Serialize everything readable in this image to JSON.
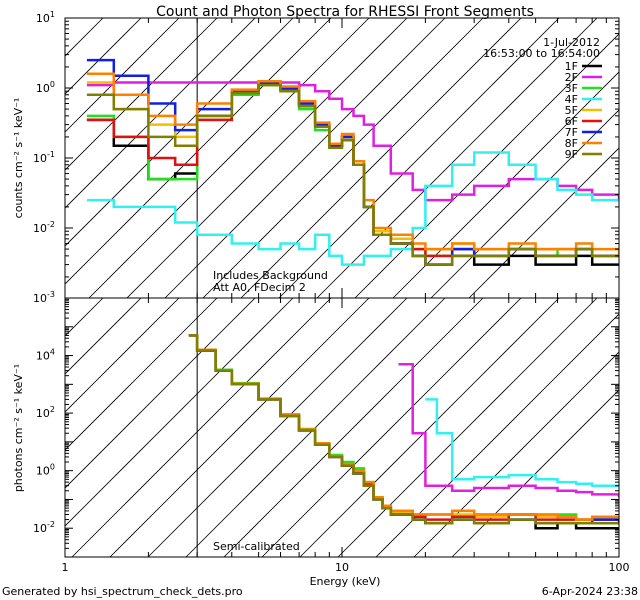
{
  "title": "Count and Photon Spectra for RHESSI Front Segments",
  "date": "1-Jul-2012",
  "time_range": "16:53:00 to 16:54:00",
  "footer_left": "Generated by hsi_spectrum_check_dets.pro",
  "footer_right": "6-Apr-2024 23:38",
  "chart_data": [
    {
      "type": "line",
      "panel": "top",
      "ylabel": "counts cm⁻² s⁻¹ keV⁻¹",
      "xlabel": "",
      "xscale": "log",
      "yscale": "log",
      "xlim": [
        1,
        100
      ],
      "ylim": [
        0.001,
        10
      ],
      "xticks": [
        {
          "value": 1,
          "label": "1"
        },
        {
          "value": 10,
          "label": "10"
        },
        {
          "value": 100,
          "label": "100"
        }
      ],
      "yticks": [
        {
          "value": 10,
          "base": "10",
          "exp": "1"
        },
        {
          "value": 1,
          "base": "10",
          "exp": "0"
        },
        {
          "value": 0.1,
          "base": "10",
          "exp": "-1"
        },
        {
          "value": 0.01,
          "base": "10",
          "exp": "-2"
        },
        {
          "value": 0.001,
          "base": "10",
          "exp": "-3"
        }
      ],
      "annotations": [
        "Includes Background",
        "Att A0, FDecim 2"
      ],
      "attenuated_below_keV": 3,
      "legend": [
        {
          "name": "1F",
          "color": "#000000"
        },
        {
          "name": "2F",
          "color": "#e020e0"
        },
        {
          "name": "3F",
          "color": "#20e020"
        },
        {
          "name": "4F",
          "color": "#30f0f0"
        },
        {
          "name": "5F",
          "color": "#f0c000"
        },
        {
          "name": "6F",
          "color": "#e01010"
        },
        {
          "name": "7F",
          "color": "#1020e0"
        },
        {
          "name": "8F",
          "color": "#ff8000"
        },
        {
          "name": "9F",
          "color": "#808000"
        }
      ],
      "series": [
        {
          "name": "1F",
          "color": "#000000",
          "x": [
            1.2,
            1.5,
            2,
            2.5,
            3,
            4,
            5,
            6,
            7,
            8,
            9,
            10,
            11,
            12,
            13,
            15,
            18,
            20,
            25,
            30,
            40,
            50,
            60,
            70,
            80,
            100
          ],
          "y": [
            0.35,
            0.15,
            0.05,
            0.06,
            0.4,
            0.9,
            1.2,
            1.0,
            0.6,
            0.3,
            0.15,
            0.2,
            0.08,
            0.02,
            0.008,
            0.006,
            0.004,
            0.003,
            0.004,
            0.003,
            0.004,
            0.003,
            0.003,
            0.004,
            0.003,
            0.003
          ]
        },
        {
          "name": "2F",
          "color": "#e020e0",
          "x": [
            1.2,
            1.5,
            2,
            3,
            4,
            5,
            6,
            7,
            8,
            9,
            10,
            11,
            12,
            13,
            15,
            18,
            20,
            25,
            30,
            40,
            50,
            60,
            70,
            80,
            100
          ],
          "y": [
            1.1,
            1.2,
            1.2,
            1.2,
            1.2,
            1.2,
            1.2,
            1.1,
            0.9,
            0.7,
            0.5,
            0.4,
            0.3,
            0.15,
            0.06,
            0.035,
            0.025,
            0.03,
            0.04,
            0.05,
            0.05,
            0.04,
            0.035,
            0.03,
            0.025
          ]
        },
        {
          "name": "3F",
          "color": "#20e020",
          "x": [
            1.2,
            1.5,
            2,
            2.5,
            3,
            4,
            5,
            6,
            7,
            8,
            9,
            10,
            11,
            12,
            13,
            15,
            18,
            20,
            25,
            30,
            40,
            50,
            60,
            70,
            80,
            100
          ],
          "y": [
            0.4,
            0.2,
            0.05,
            0.05,
            0.35,
            0.8,
            1.1,
            0.9,
            0.5,
            0.25,
            0.15,
            0.18,
            0.09,
            0.02,
            0.009,
            0.007,
            0.005,
            0.004,
            0.005,
            0.004,
            0.005,
            0.004,
            0.005,
            0.005,
            0.004,
            0.004
          ]
        },
        {
          "name": "4F",
          "color": "#30f0f0",
          "x": [
            1.2,
            1.5,
            2,
            2.5,
            3,
            4,
            5,
            6,
            7,
            8,
            9,
            10,
            11,
            12,
            13,
            15,
            18,
            20,
            25,
            30,
            40,
            50,
            60,
            70,
            80,
            100
          ],
          "y": [
            0.025,
            0.02,
            0.02,
            0.012,
            0.008,
            0.006,
            0.005,
            0.006,
            0.005,
            0.008,
            0.004,
            0.003,
            0.003,
            0.004,
            0.004,
            0.005,
            0.01,
            0.04,
            0.08,
            0.12,
            0.08,
            0.05,
            0.035,
            0.03,
            0.025,
            0.025
          ]
        },
        {
          "name": "5F",
          "color": "#f0c000",
          "x": [
            1.2,
            1.5,
            2,
            2.5,
            3,
            4,
            5,
            6,
            7,
            8,
            9,
            10,
            11,
            12,
            13,
            15,
            18,
            20,
            25,
            30,
            40,
            50,
            60,
            70,
            80,
            100
          ],
          "y": [
            1.2,
            0.5,
            0.3,
            0.2,
            0.5,
            0.9,
            1.2,
            1.0,
            0.6,
            0.3,
            0.15,
            0.2,
            0.08,
            0.02,
            0.009,
            0.007,
            0.005,
            0.005,
            0.006,
            0.005,
            0.005,
            0.005,
            0.005,
            0.005,
            0.004,
            0.005
          ]
        },
        {
          "name": "6F",
          "color": "#e01010",
          "x": [
            1.2,
            1.5,
            2,
            2.5,
            3,
            4,
            5,
            6,
            7,
            8,
            9,
            10,
            11,
            12,
            13,
            15,
            18,
            20,
            25,
            30,
            40,
            50,
            60,
            70,
            80,
            100
          ],
          "y": [
            0.35,
            0.2,
            0.1,
            0.08,
            0.35,
            0.85,
            1.15,
            0.95,
            0.55,
            0.28,
            0.15,
            0.18,
            0.08,
            0.02,
            0.008,
            0.006,
            0.005,
            0.004,
            0.005,
            0.004,
            0.005,
            0.004,
            0.004,
            0.005,
            0.004,
            0.004
          ]
        },
        {
          "name": "7F",
          "color": "#1020e0",
          "x": [
            1.2,
            1.5,
            2,
            2.5,
            3,
            4,
            5,
            6,
            7,
            8,
            9,
            10,
            11,
            12,
            13,
            15,
            18,
            20,
            25,
            30,
            40,
            50,
            60,
            70,
            80,
            100
          ],
          "y": [
            2.5,
            1.5,
            0.6,
            0.25,
            0.5,
            0.9,
            1.2,
            1.0,
            0.6,
            0.3,
            0.15,
            0.2,
            0.08,
            0.02,
            0.008,
            0.006,
            0.004,
            0.003,
            0.005,
            0.004,
            0.005,
            0.004,
            0.004,
            0.005,
            0.004,
            0.004
          ]
        },
        {
          "name": "8F",
          "color": "#ff8000",
          "x": [
            1.2,
            1.5,
            2,
            2.5,
            3,
            4,
            5,
            6,
            7,
            8,
            9,
            10,
            11,
            12,
            13,
            15,
            18,
            20,
            25,
            30,
            40,
            50,
            60,
            70,
            80,
            100
          ],
          "y": [
            1.6,
            0.8,
            0.4,
            0.3,
            0.6,
            0.95,
            1.25,
            1.05,
            0.65,
            0.32,
            0.16,
            0.22,
            0.09,
            0.025,
            0.01,
            0.008,
            0.006,
            0.005,
            0.006,
            0.005,
            0.006,
            0.005,
            0.005,
            0.006,
            0.005,
            0.005
          ]
        },
        {
          "name": "9F",
          "color": "#808000",
          "x": [
            1.2,
            1.5,
            2,
            2.5,
            3,
            4,
            5,
            6,
            7,
            8,
            9,
            10,
            11,
            12,
            13,
            15,
            18,
            20,
            25,
            30,
            40,
            50,
            60,
            70,
            80,
            100
          ],
          "y": [
            0.8,
            0.5,
            0.2,
            0.15,
            0.4,
            0.85,
            1.1,
            0.9,
            0.55,
            0.28,
            0.14,
            0.18,
            0.08,
            0.02,
            0.008,
            0.006,
            0.004,
            0.003,
            0.004,
            0.004,
            0.005,
            0.004,
            0.004,
            0.005,
            0.004,
            0.004
          ]
        }
      ]
    },
    {
      "type": "line",
      "panel": "bottom",
      "ylabel": "photons cm⁻² s⁻¹ keV⁻¹",
      "xlabel": "Energy (keV)",
      "xscale": "log",
      "yscale": "log",
      "xlim": [
        1,
        100
      ],
      "ylim": [
        0.001,
        1000000
      ],
      "xticks": [
        {
          "value": 1,
          "label": "1"
        },
        {
          "value": 10,
          "label": "10"
        },
        {
          "value": 100,
          "label": "100"
        }
      ],
      "yticks": [
        {
          "value": 10000,
          "base": "10",
          "exp": "4"
        },
        {
          "value": 100,
          "base": "10",
          "exp": "2"
        },
        {
          "value": 1,
          "base": "10",
          "exp": "0"
        },
        {
          "value": 0.01,
          "base": "10",
          "exp": "-2"
        }
      ],
      "annotations": [
        "Semi-calibrated"
      ],
      "attenuated_below_keV": 3,
      "series": [
        {
          "name": "1F",
          "color": "#000000",
          "x": [
            2.8,
            3,
            3.5,
            4,
            5,
            6,
            7,
            8,
            9,
            10,
            11,
            12,
            13,
            14,
            15,
            18,
            20,
            25,
            30,
            40,
            50,
            60,
            70,
            80,
            100
          ],
          "y": [
            50000,
            15000,
            3000,
            1000,
            300,
            80,
            25,
            8,
            3,
            1.5,
            0.8,
            0.3,
            0.1,
            0.05,
            0.03,
            0.02,
            0.015,
            0.02,
            0.015,
            0.02,
            0.01,
            0.015,
            0.01,
            0.01,
            0.01
          ]
        },
        {
          "name": "2F",
          "color": "#e020e0",
          "x": [
            16,
            18,
            20,
            25,
            30,
            40,
            50,
            60,
            70,
            80,
            100
          ],
          "y": [
            5000,
            20,
            0.3,
            0.2,
            0.25,
            0.3,
            0.25,
            0.2,
            0.18,
            0.15,
            0.12
          ]
        },
        {
          "name": "3F",
          "color": "#20e020",
          "x": [
            2.8,
            3,
            3.5,
            4,
            5,
            6,
            7,
            8,
            9,
            10,
            11,
            12,
            13,
            14,
            15,
            18,
            20,
            25,
            30,
            40,
            50,
            60,
            70,
            80,
            100
          ],
          "y": [
            50000,
            16000,
            3200,
            1100,
            320,
            90,
            28,
            9,
            3.5,
            2,
            1.2,
            0.4,
            0.12,
            0.06,
            0.04,
            0.03,
            0.03,
            0.04,
            0.03,
            0.03,
            0.03,
            0.03,
            0.02,
            0.02,
            0.02
          ]
        },
        {
          "name": "4F",
          "color": "#30f0f0",
          "x": [
            20,
            22,
            25,
            30,
            40,
            50,
            60,
            70,
            80,
            100
          ],
          "y": [
            300,
            20,
            0.5,
            0.6,
            0.7,
            0.5,
            0.4,
            0.35,
            0.3,
            0.3
          ]
        },
        {
          "name": "5F",
          "color": "#f0c000",
          "x": [
            2.8,
            3,
            3.5,
            4,
            5,
            6,
            7,
            8,
            9,
            10,
            11,
            12,
            13,
            14,
            15,
            18,
            20,
            25,
            30,
            40,
            50,
            60,
            70,
            80,
            100
          ],
          "y": [
            50000,
            15000,
            3000,
            1000,
            300,
            80,
            25,
            8,
            3,
            1.6,
            0.9,
            0.35,
            0.1,
            0.05,
            0.035,
            0.03,
            0.03,
            0.03,
            0.025,
            0.03,
            0.025,
            0.02,
            0.02,
            0.02,
            0.02
          ]
        },
        {
          "name": "6F",
          "color": "#e01010",
          "x": [
            2.8,
            3,
            3.5,
            4,
            5,
            6,
            7,
            8,
            9,
            10,
            11,
            12,
            13,
            14,
            15,
            18,
            20,
            25,
            30,
            40,
            50,
            60,
            70,
            80,
            100
          ],
          "y": [
            50000,
            15000,
            3000,
            1000,
            300,
            80,
            25,
            8,
            3,
            1.6,
            0.9,
            0.35,
            0.1,
            0.05,
            0.03,
            0.025,
            0.02,
            0.025,
            0.02,
            0.03,
            0.02,
            0.02,
            0.02,
            0.02,
            0.02
          ]
        },
        {
          "name": "7F",
          "color": "#1020e0",
          "x": [
            2.8,
            3,
            3.5,
            4,
            5,
            6,
            7,
            8,
            9,
            10,
            11,
            12,
            13,
            14,
            15,
            18,
            20,
            25,
            30,
            40,
            50,
            60,
            70,
            80,
            100
          ],
          "y": [
            50000,
            15000,
            3000,
            1000,
            300,
            80,
            25,
            8,
            3,
            1.5,
            0.8,
            0.3,
            0.1,
            0.05,
            0.03,
            0.02,
            0.015,
            0.02,
            0.015,
            0.02,
            0.015,
            0.015,
            0.015,
            0.02,
            0.015
          ]
        },
        {
          "name": "8F",
          "color": "#ff8000",
          "x": [
            2.8,
            3,
            3.5,
            4,
            5,
            6,
            7,
            8,
            9,
            10,
            11,
            12,
            13,
            14,
            15,
            18,
            20,
            25,
            30,
            40,
            50,
            60,
            70,
            80,
            100
          ],
          "y": [
            50000,
            16000,
            3100,
            1050,
            310,
            85,
            27,
            9,
            3.2,
            1.7,
            1.0,
            0.4,
            0.12,
            0.06,
            0.04,
            0.03,
            0.03,
            0.04,
            0.03,
            0.03,
            0.03,
            0.025,
            0.02,
            0.025,
            0.02
          ]
        },
        {
          "name": "9F",
          "color": "#808000",
          "x": [
            2.8,
            3,
            3.5,
            4,
            5,
            6,
            7,
            8,
            9,
            10,
            11,
            12,
            13,
            14,
            15,
            18,
            20,
            25,
            30,
            40,
            50,
            60,
            70,
            80,
            100
          ],
          "y": [
            50000,
            15000,
            3000,
            1000,
            300,
            80,
            25,
            8,
            3,
            1.5,
            0.8,
            0.3,
            0.1,
            0.05,
            0.03,
            0.02,
            0.015,
            0.02,
            0.015,
            0.02,
            0.015,
            0.015,
            0.015,
            0.015,
            0.015
          ]
        }
      ]
    }
  ]
}
